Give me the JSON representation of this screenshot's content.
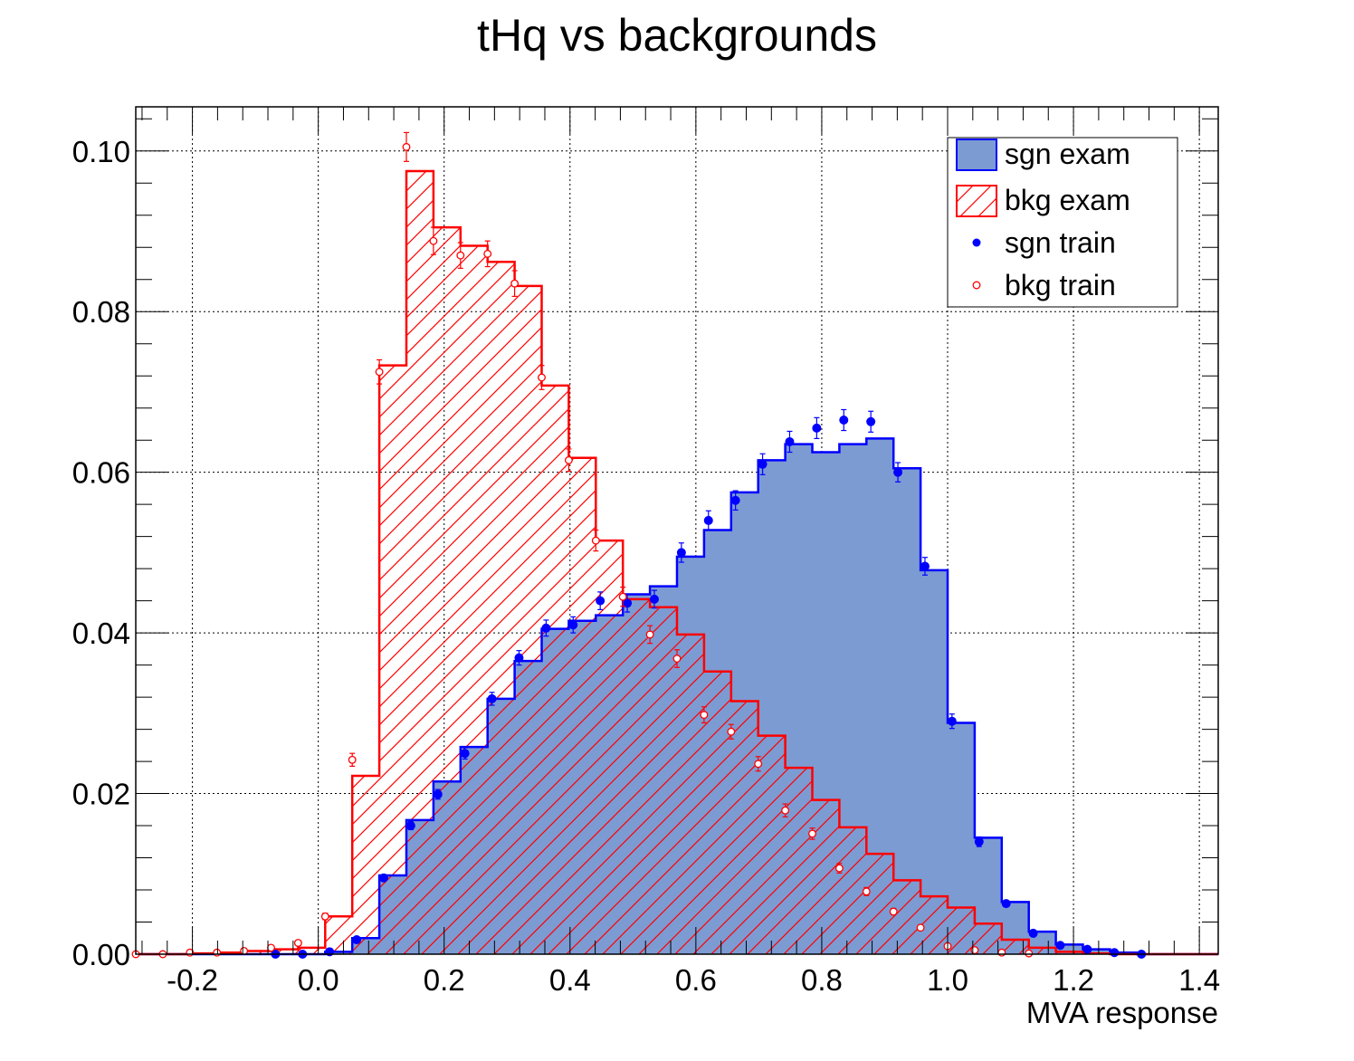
{
  "chart_data": {
    "type": "bar",
    "title": "tHq vs backgrounds",
    "xlabel": "MVA response",
    "ylabel": "",
    "xlim": [
      -0.29,
      1.43
    ],
    "ylim": [
      0,
      0.1055
    ],
    "x_ticks": [
      "-0.2",
      "0.0",
      "0.2",
      "0.4",
      "0.6",
      "0.8",
      "1.0",
      "1.2",
      "1.4"
    ],
    "y_ticks": [
      "0.00",
      "0.02",
      "0.04",
      "0.06",
      "0.08",
      "0.10"
    ],
    "grid": true,
    "legend_position": "top-right",
    "bin_edges": [
      -0.29,
      -0.247,
      -0.204,
      -0.161,
      -0.118,
      -0.075,
      -0.032,
      0.011,
      0.054,
      0.097,
      0.14,
      0.183,
      0.226,
      0.269,
      0.312,
      0.355,
      0.398,
      0.441,
      0.484,
      0.527,
      0.57,
      0.613,
      0.656,
      0.699,
      0.742,
      0.785,
      0.828,
      0.871,
      0.914,
      0.957,
      1.0,
      1.043,
      1.086,
      1.129,
      1.172,
      1.215,
      1.258,
      1.301,
      1.344,
      1.387,
      1.43
    ],
    "series": [
      {
        "name": "sgn exam",
        "style": "filled",
        "color": "#0000ff",
        "fill": "#7c9bd3",
        "values": [
          0,
          0,
          0,
          0,
          0,
          0,
          0,
          0.0003,
          0.002,
          0.0098,
          0.0167,
          0.0215,
          0.0258,
          0.0318,
          0.0365,
          0.0405,
          0.0415,
          0.0422,
          0.0448,
          0.0458,
          0.0495,
          0.0528,
          0.0575,
          0.0615,
          0.0635,
          0.0625,
          0.0635,
          0.0642,
          0.0605,
          0.0478,
          0.0288,
          0.0145,
          0.0065,
          0.0028,
          0.0012,
          0.0006,
          0.0002,
          0,
          0,
          0
        ]
      },
      {
        "name": "bkg exam",
        "style": "hatched",
        "color": "#ff0000",
        "values": [
          0,
          0,
          0.0001,
          0.0002,
          0.0004,
          0.0006,
          0.0008,
          0.0047,
          0.0222,
          0.0733,
          0.0975,
          0.0905,
          0.0882,
          0.0862,
          0.0832,
          0.0708,
          0.0618,
          0.0515,
          0.0442,
          0.0432,
          0.0398,
          0.0352,
          0.0315,
          0.0272,
          0.0232,
          0.0192,
          0.0158,
          0.0125,
          0.0092,
          0.0072,
          0.0058,
          0.0038,
          0.0018,
          0.0008,
          0.0003,
          0.0001,
          0,
          0,
          0,
          0
        ]
      },
      {
        "name": "sgn train",
        "style": "markers",
        "marker": "filled-circle",
        "color": "#0000ff",
        "x": [
          -0.068,
          -0.025,
          0.018,
          0.061,
          0.104,
          0.147,
          0.19,
          0.233,
          0.276,
          0.319,
          0.362,
          0.405,
          0.448,
          0.491,
          0.534,
          0.577,
          0.62,
          0.663,
          0.706,
          0.749,
          0.792,
          0.835,
          0.878,
          0.921,
          0.964,
          1.007,
          1.05,
          1.093,
          1.136,
          1.179,
          1.222,
          1.265,
          1.308
        ],
        "y": [
          0,
          0,
          0.0003,
          0.0018,
          0.0095,
          0.016,
          0.0199,
          0.025,
          0.0318,
          0.0369,
          0.0406,
          0.041,
          0.044,
          0.0437,
          0.0442,
          0.05,
          0.054,
          0.0565,
          0.061,
          0.0638,
          0.0655,
          0.0665,
          0.0663,
          0.06,
          0.0483,
          0.029,
          0.014,
          0.0063,
          0.0026,
          0.0011,
          0.0006,
          0.0002,
          0
        ],
        "err": [
          0,
          0,
          0.0001,
          0.0002,
          0.0004,
          0.0005,
          0.0006,
          0.0007,
          0.0008,
          0.0009,
          0.001,
          0.001,
          0.0011,
          0.0011,
          0.0011,
          0.0012,
          0.0012,
          0.0012,
          0.0013,
          0.0013,
          0.0013,
          0.0013,
          0.0013,
          0.0012,
          0.0011,
          0.0009,
          0.0006,
          0.0004,
          0.0003,
          0.0002,
          0.0001,
          0.0001,
          0
        ]
      },
      {
        "name": "bkg train",
        "style": "markers",
        "marker": "open-circle",
        "color": "#ff0000",
        "x": [
          -0.29,
          -0.247,
          -0.204,
          -0.161,
          -0.118,
          -0.075,
          -0.032,
          0.011,
          0.054,
          0.097,
          0.14,
          0.183,
          0.226,
          0.269,
          0.312,
          0.355,
          0.398,
          0.441,
          0.484,
          0.527,
          0.57,
          0.613,
          0.656,
          0.699,
          0.742,
          0.785,
          0.828,
          0.871,
          0.914,
          0.957,
          1.0,
          1.043,
          1.086,
          1.129
        ],
        "y": [
          0,
          0,
          0.0002,
          0.0002,
          0.0004,
          0.0008,
          0.0014,
          0.0047,
          0.0242,
          0.0725,
          0.1005,
          0.0888,
          0.087,
          0.0872,
          0.0835,
          0.0718,
          0.0615,
          0.0515,
          0.0445,
          0.0398,
          0.0368,
          0.0298,
          0.0277,
          0.0237,
          0.0179,
          0.015,
          0.0107,
          0.0078,
          0.0053,
          0.0033,
          0.001,
          0.0005,
          0.0002,
          0.0001
        ],
        "err": [
          0,
          0,
          0.0001,
          0.0001,
          0.0001,
          0.0002,
          0.0002,
          0.0004,
          0.0008,
          0.0015,
          0.0018,
          0.0017,
          0.0016,
          0.0016,
          0.0016,
          0.0015,
          0.0014,
          0.0013,
          0.0012,
          0.0011,
          0.0011,
          0.001,
          0.0009,
          0.0009,
          0.0008,
          0.0007,
          0.0006,
          0.0005,
          0.0004,
          0.0003,
          0.0002,
          0.0001,
          0.0001,
          0.0001
        ]
      }
    ]
  }
}
